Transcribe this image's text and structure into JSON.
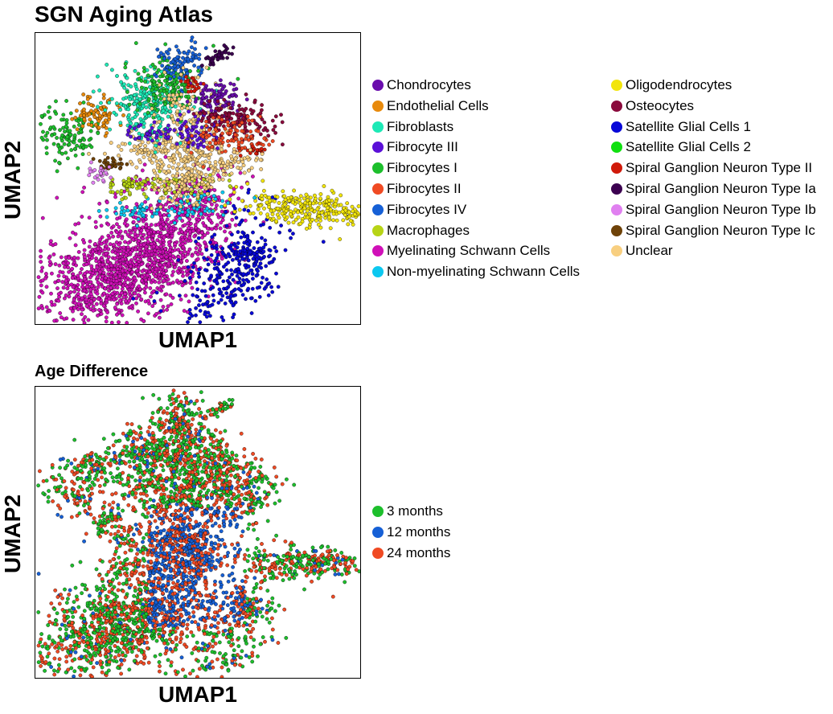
{
  "chart_data": [
    {
      "type": "scatter",
      "title": "SGN Aging Atlas",
      "xlabel": "UMAP1",
      "ylabel": "UMAP2",
      "ticks": "none",
      "legend_position": "right",
      "legend": [
        {
          "label": "Chondrocytes",
          "color": "#6a0dad"
        },
        {
          "label": "Endothelial Cells",
          "color": "#e88a0c"
        },
        {
          "label": "Fibroblasts",
          "color": "#1de9b6"
        },
        {
          "label": "Fibrocyte III",
          "color": "#5b10d8"
        },
        {
          "label": "Fibrocytes I",
          "color": "#1dbf2c"
        },
        {
          "label": "Fibrocytes II",
          "color": "#f04a23"
        },
        {
          "label": "Fibrocytes IV",
          "color": "#1660d6"
        },
        {
          "label": "Macrophages",
          "color": "#b7d416"
        },
        {
          "label": "Myelinating Schwann Cells",
          "color": "#d010b8"
        },
        {
          "label": "Non-myelinating Schwann Cells",
          "color": "#0cc8f0"
        },
        {
          "label": "Oligodendrocytes",
          "color": "#f2e50c"
        },
        {
          "label": "Osteocytes",
          "color": "#8a0a3c"
        },
        {
          "label": "Satellite Glial Cells 1",
          "color": "#0808d8"
        },
        {
          "label": "Satellite Glial Cells 2",
          "color": "#10e010"
        },
        {
          "label": "Spiral Ganglion Neuron Type II",
          "color": "#d01a0a"
        },
        {
          "label": "Spiral Ganglion Neuron Type Ia",
          "color": "#3c0050"
        },
        {
          "label": "Spiral Ganglion Neuron Type Ib",
          "color": "#e080f0"
        },
        {
          "label": "Spiral Ganglion Neuron Type Ic",
          "color": "#6e4208"
        },
        {
          "label": "Unclear",
          "color": "#f8cf80"
        }
      ]
    },
    {
      "type": "scatter",
      "title": "Age Difference",
      "xlabel": "UMAP1",
      "ylabel": "UMAP2",
      "ticks": "none",
      "legend_position": "right",
      "legend": [
        {
          "label": "3 months",
          "color": "#1dbf2c"
        },
        {
          "label": "12 months",
          "color": "#1660d6"
        },
        {
          "label": "24 months",
          "color": "#f04a23"
        }
      ]
    }
  ]
}
